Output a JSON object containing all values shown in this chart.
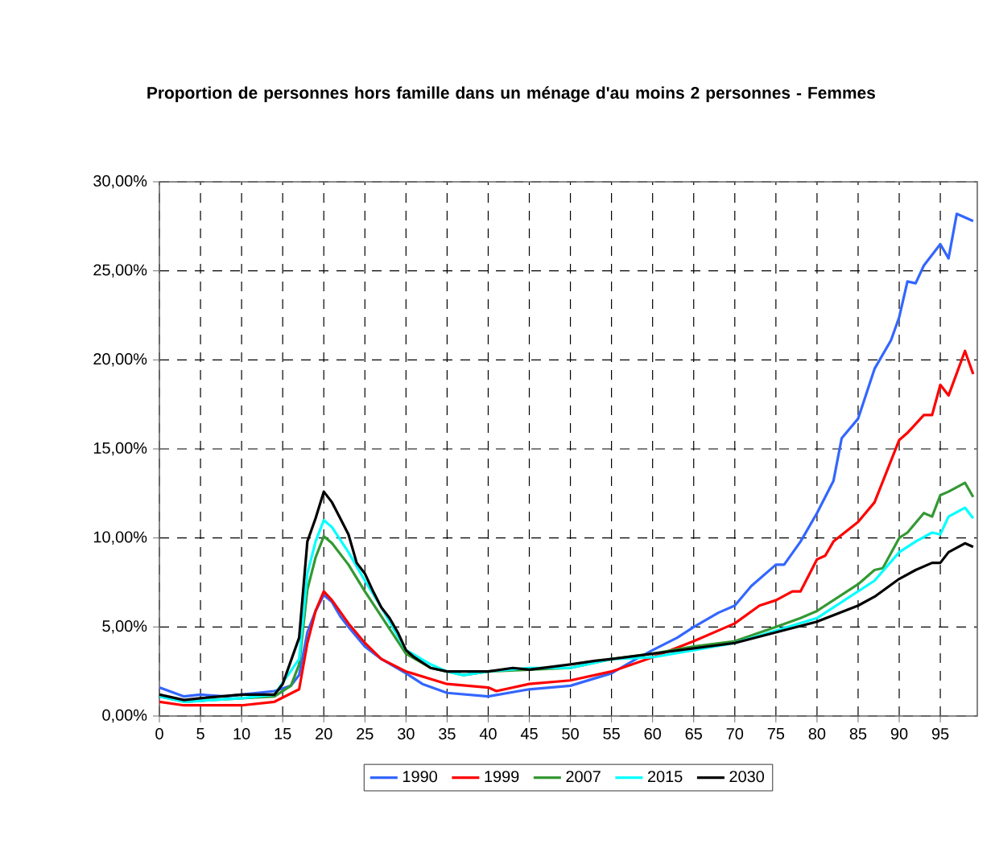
{
  "chart_data": {
    "type": "line",
    "title": "Proportion de personnes hors famille dans un ménage d'au moins 2 personnes - Femmes",
    "xlim": [
      0,
      99.5
    ],
    "ylim": [
      0,
      30
    ],
    "xticks": [
      0,
      5,
      10,
      15,
      20,
      25,
      30,
      35,
      40,
      45,
      50,
      55,
      60,
      65,
      70,
      75,
      80,
      85,
      90,
      95
    ],
    "yticks": [
      {
        "value": 0,
        "label": "0,00%"
      },
      {
        "value": 5,
        "label": "5,00%"
      },
      {
        "value": 10,
        "label": "10,00%"
      },
      {
        "value": 15,
        "label": "15,00%"
      },
      {
        "value": 20,
        "label": "20,00%"
      },
      {
        "value": 25,
        "label": "25,00%"
      },
      {
        "value": 30,
        "label": "30,00%"
      }
    ],
    "grid": true,
    "legend": "bottom",
    "marker": "none",
    "line_style": "solid",
    "series": [
      {
        "name": "1990",
        "color": "#3366ff",
        "x": [
          0,
          3,
          5,
          8,
          10,
          14,
          16,
          17,
          18,
          19,
          20,
          21,
          22,
          23,
          25,
          27,
          30,
          32,
          35,
          40,
          45,
          50,
          55,
          58,
          60,
          63,
          65,
          68,
          70,
          72,
          75,
          76,
          78,
          80,
          82,
          83,
          85,
          87,
          89,
          90,
          91,
          92,
          93,
          95,
          96,
          97,
          99
        ],
        "values": [
          1.6,
          1.1,
          1.2,
          1.1,
          1.2,
          1.4,
          1.7,
          2.3,
          4.7,
          5.9,
          6.8,
          6.4,
          5.6,
          5.0,
          3.9,
          3.2,
          2.4,
          1.8,
          1.3,
          1.1,
          1.5,
          1.7,
          2.4,
          3.2,
          3.7,
          4.4,
          5.0,
          5.8,
          6.2,
          7.3,
          8.5,
          8.5,
          9.8,
          11.4,
          13.2,
          15.6,
          16.7,
          19.5,
          21.1,
          22.4,
          24.4,
          24.3,
          25.3,
          26.5,
          25.7,
          28.2,
          27.8
        ]
      },
      {
        "name": "1999",
        "color": "#ff0000",
        "x": [
          0,
          3,
          10,
          14,
          17,
          18,
          19,
          20,
          21,
          23,
          25,
          27,
          30,
          35,
          40,
          41,
          45,
          50,
          55,
          60,
          65,
          70,
          73,
          75,
          77,
          78,
          80,
          81,
          82,
          85,
          87,
          90,
          91,
          93,
          94,
          95,
          96,
          98,
          99
        ],
        "values": [
          0.8,
          0.6,
          0.6,
          0.8,
          1.5,
          4.1,
          5.9,
          7.0,
          6.5,
          5.2,
          4.1,
          3.2,
          2.5,
          1.8,
          1.6,
          1.4,
          1.8,
          2.0,
          2.5,
          3.3,
          4.2,
          5.2,
          6.2,
          6.5,
          7.0,
          7.0,
          8.8,
          9.0,
          9.8,
          10.9,
          12.0,
          15.5,
          15.9,
          16.9,
          16.9,
          18.6,
          18.0,
          20.5,
          19.2
        ]
      },
      {
        "name": "2007",
        "color": "#339933",
        "x": [
          0,
          3,
          10,
          14,
          16,
          17,
          18,
          19,
          20,
          21,
          23,
          25,
          27,
          30,
          33,
          35,
          37,
          40,
          45,
          50,
          55,
          60,
          65,
          70,
          75,
          78,
          80,
          82,
          85,
          87,
          88,
          90,
          91,
          93,
          94,
          95,
          96,
          98,
          99
        ],
        "values": [
          1.1,
          0.8,
          1.0,
          1.1,
          1.7,
          2.9,
          7.1,
          8.9,
          10.1,
          9.7,
          8.5,
          7.0,
          5.6,
          3.5,
          2.7,
          2.5,
          2.3,
          2.5,
          2.6,
          2.7,
          3.2,
          3.5,
          3.9,
          4.2,
          5.0,
          5.5,
          5.9,
          6.5,
          7.4,
          8.2,
          8.3,
          10.0,
          10.3,
          11.4,
          11.2,
          12.4,
          12.6,
          13.1,
          12.3
        ]
      },
      {
        "name": "2015",
        "color": "#00ffff",
        "x": [
          0,
          3,
          10,
          14,
          17,
          18,
          19,
          20,
          21,
          23,
          25,
          27,
          30,
          33,
          35,
          37,
          40,
          45,
          50,
          55,
          60,
          65,
          70,
          75,
          80,
          82,
          85,
          87,
          90,
          92,
          94,
          95,
          96,
          98,
          99
        ],
        "values": [
          1.1,
          0.8,
          1.0,
          1.2,
          3.2,
          8.0,
          9.8,
          11.0,
          10.6,
          9.2,
          7.6,
          6.1,
          3.7,
          2.9,
          2.5,
          2.3,
          2.5,
          2.7,
          2.7,
          3.2,
          3.3,
          3.7,
          4.1,
          4.8,
          5.5,
          6.1,
          7.0,
          7.6,
          9.2,
          9.8,
          10.3,
          10.2,
          11.2,
          11.7,
          11.1
        ]
      },
      {
        "name": "2030",
        "color": "#000000",
        "x": [
          0,
          3,
          5,
          10,
          14,
          15,
          17,
          18,
          19,
          20,
          21,
          22,
          23,
          24,
          25,
          26,
          27,
          28,
          29,
          30,
          31,
          33,
          35,
          40,
          43,
          45,
          50,
          53,
          55,
          60,
          65,
          70,
          75,
          80,
          85,
          87,
          90,
          92,
          94,
          95,
          96,
          98,
          99
        ],
        "values": [
          1.2,
          0.9,
          1.0,
          1.2,
          1.2,
          1.8,
          4.4,
          9.8,
          11.1,
          12.6,
          12.0,
          11.1,
          10.2,
          8.6,
          8.0,
          7.0,
          6.1,
          5.5,
          4.7,
          3.7,
          3.3,
          2.7,
          2.5,
          2.5,
          2.7,
          2.6,
          2.9,
          3.1,
          3.2,
          3.5,
          3.8,
          4.1,
          4.7,
          5.3,
          6.2,
          6.7,
          7.7,
          8.2,
          8.6,
          8.6,
          9.2,
          9.7,
          9.5
        ]
      }
    ]
  }
}
